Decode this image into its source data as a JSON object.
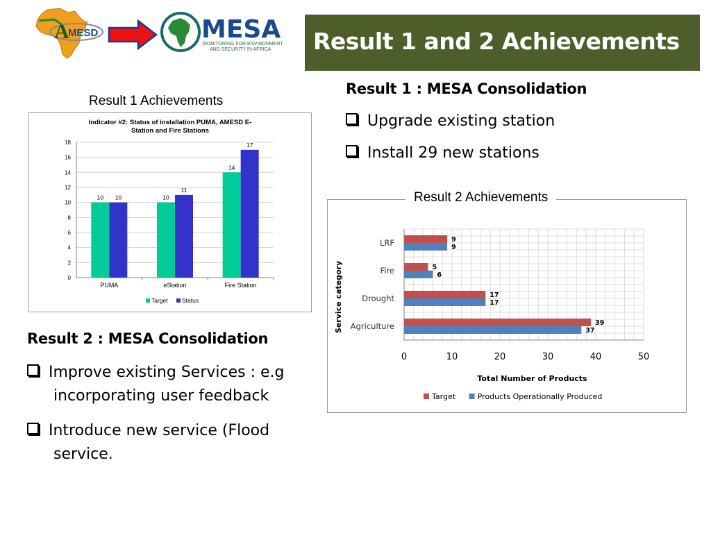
{
  "logos": {
    "left_logo_text": "MESD",
    "left_logo_letter": "A",
    "right_logo_name": "MESA",
    "right_logo_tagline_1": "MONITORING FOR ENVIRONMENT",
    "right_logo_tagline_2": "AND SECURITY IN AFRICA"
  },
  "title": "Result 1 and 2 Achievements",
  "colors": {
    "title_bar": "#4e5e2a",
    "target_green": "#00cc99",
    "status_blue": "#3333cc",
    "target_red": "#c0504d",
    "produced_blue": "#4f81bd"
  },
  "result1": {
    "heading": "Result 1 : MESA Consolidation",
    "bullets": [
      "Upgrade existing station",
      "Install  29 new stations"
    ]
  },
  "result2": {
    "heading": "Result 2 : MESA Consolidation",
    "bullets": [
      "Improve existing Services : e.g incorporating user feedback",
      "Introduce new service (Flood service."
    ]
  },
  "chart_data": [
    {
      "type": "bar",
      "panel_label": "Result 1 Achievements",
      "title_line_1": "Indicator #2: Status of installation PUMA, AMESD E-",
      "title_line_2": "Station and Fire Stations",
      "categories": [
        "PUMA",
        "eStation",
        "Fire Station"
      ],
      "series": [
        {
          "name": "Target",
          "values": [
            10,
            10,
            14
          ]
        },
        {
          "name": "Status",
          "values": [
            10,
            11,
            17
          ]
        }
      ],
      "ylim": [
        0,
        18
      ],
      "yticks": [
        0,
        2,
        4,
        6,
        8,
        10,
        12,
        14,
        16,
        18
      ],
      "grid": true,
      "legend": "bottom",
      "data_labels": true
    },
    {
      "type": "bar",
      "orientation": "horizontal",
      "panel_label": "Result 2 Achievements",
      "categories": [
        "LRF",
        "Fire",
        "Drought",
        "Agriculture"
      ],
      "series": [
        {
          "name": "Target",
          "values": [
            9,
            5,
            17,
            39
          ]
        },
        {
          "name": "Products Operationally Produced",
          "values": [
            9,
            6,
            17,
            37
          ]
        }
      ],
      "xlabel": "Total Number of Products",
      "ylabel": "Service category",
      "xlim": [
        0,
        50
      ],
      "xticks": [
        0,
        10,
        20,
        30,
        40,
        50
      ],
      "grid": true,
      "legend": "bottom",
      "data_labels": true
    }
  ]
}
